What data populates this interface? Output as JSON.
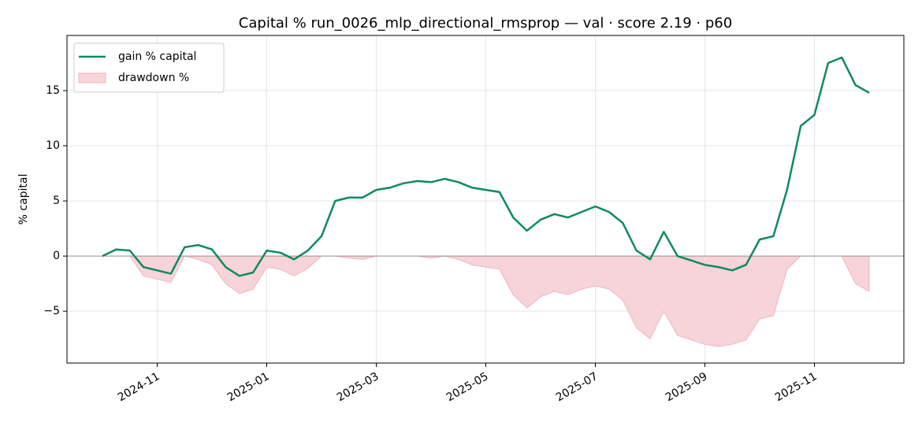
{
  "chart_data": {
    "type": "line",
    "title": "Capital % run_0026_mlp_directional_rmsprop — val · score 2.19 · p60",
    "y_label": "% capital",
    "x": [
      null,
      null,
      null,
      null,
      "2024-11",
      null,
      null,
      null,
      null,
      null,
      null,
      null,
      "2025-01",
      null,
      null,
      null,
      null,
      null,
      null,
      null,
      "2025-03",
      null,
      null,
      null,
      null,
      null,
      null,
      null,
      "2025-05",
      null,
      null,
      null,
      null,
      null,
      null,
      null,
      "2025-07",
      null,
      null,
      null,
      null,
      null,
      null,
      null,
      "2025-09",
      null,
      null,
      null,
      null,
      null,
      null,
      null,
      "2025-11",
      null,
      null,
      null,
      null
    ],
    "series": [
      {
        "name": "gain % capital",
        "color": "#0f8a5f",
        "values": [
          0,
          0.6,
          0.5,
          -1.0,
          -1.3,
          -1.6,
          0.8,
          1.0,
          0.6,
          -1.0,
          -1.8,
          -1.5,
          0.5,
          0.3,
          -0.3,
          0.5,
          1.8,
          5.0,
          5.3,
          5.3,
          6.0,
          6.2,
          6.6,
          6.8,
          6.7,
          7.0,
          6.7,
          6.2,
          6.0,
          5.8,
          3.5,
          2.3,
          3.3,
          3.8,
          3.5,
          4.0,
          4.5,
          4.0,
          3.0,
          0.5,
          -0.3,
          2.2,
          0.0,
          -0.4,
          -0.8,
          -1.0,
          -1.3,
          -0.8,
          1.5,
          1.8,
          6,
          11.8,
          12.8,
          17.5,
          18.0,
          15.5,
          14.8
        ]
      },
      {
        "name": "drawdown %",
        "color": "#f7d3da",
        "values": [
          0,
          0,
          0,
          -1.8,
          -2.1,
          -2.4,
          0,
          -0.3,
          -0.8,
          -2.5,
          -3.4,
          -3.0,
          -1.0,
          -1.2,
          -1.8,
          -1.1,
          0,
          0,
          -0.2,
          -0.3,
          0,
          0,
          0,
          0,
          -0.2,
          0,
          -0.3,
          -0.8,
          -1.0,
          -1.2,
          -3.5,
          -4.7,
          -3.7,
          -3.2,
          -3.5,
          -3.0,
          -2.7,
          -3.0,
          -4.0,
          -6.5,
          -7.5,
          -5.0,
          -7.2,
          -7.6,
          -8.0,
          -8.2,
          -8.0,
          -7.6,
          -5.7,
          -5.4,
          -1.2,
          0,
          0,
          0,
          0,
          -2.5,
          -3.2
        ]
      }
    ],
    "ylim": [
      -9.7,
      20
    ],
    "yticks": [
      {
        "value": -5,
        "label": "−5"
      },
      0,
      5,
      10,
      15
    ],
    "grid": true,
    "legend": "upper left"
  }
}
